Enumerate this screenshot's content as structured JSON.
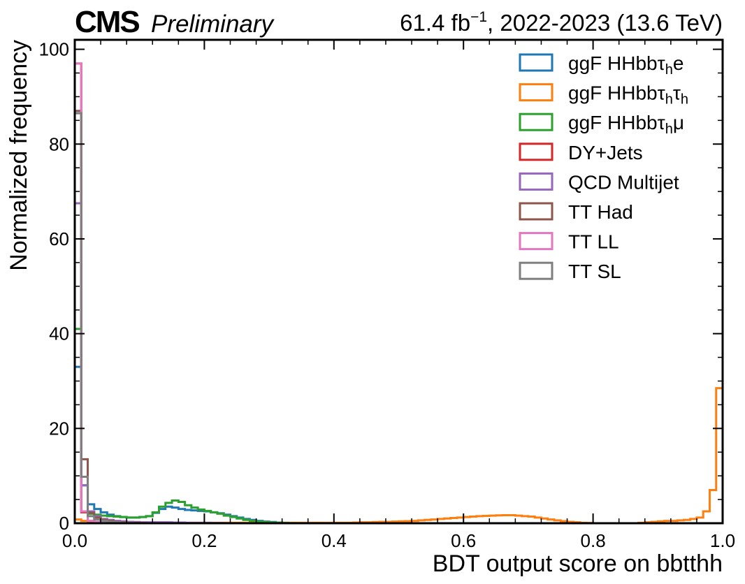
{
  "header": {
    "experiment": "CMS",
    "status": "Preliminary",
    "lumi_value": "61.4 fb",
    "lumi_exp": "−1",
    "lumi_rest": ", 2022-2023 (13.6 TeV)"
  },
  "chart_data": {
    "type": "histogram-step",
    "xlabel": "BDT output score on bbtthh",
    "ylabel": "Normalized frequency",
    "xlim": [
      0.0,
      1.0
    ],
    "ylim": [
      0,
      102
    ],
    "bin_width": 0.01,
    "xticks": [
      "0.0",
      "0.2",
      "0.4",
      "0.6",
      "0.8",
      "1.0"
    ],
    "yticks": [
      "0",
      "20",
      "40",
      "60",
      "80",
      "100"
    ],
    "legend_position": "top-right",
    "series": [
      {
        "name": "ggF HHbbτhe",
        "legend": {
          "base": "ggF HHbbτ",
          "sub1": "h",
          "tail": "e",
          "sub2": ""
        },
        "color": "#1f77b4",
        "bins": [
          [
            0.0,
            33
          ],
          [
            0.01,
            8
          ],
          [
            0.02,
            4
          ],
          [
            0.03,
            3
          ],
          [
            0.04,
            2.3
          ],
          [
            0.05,
            1.8
          ],
          [
            0.06,
            1.5
          ],
          [
            0.07,
            1.3
          ],
          [
            0.08,
            1.2
          ],
          [
            0.09,
            1.2
          ],
          [
            0.1,
            1.3
          ],
          [
            0.11,
            1.5
          ],
          [
            0.12,
            2.2
          ],
          [
            0.13,
            3
          ],
          [
            0.14,
            3.5
          ],
          [
            0.15,
            3.3
          ],
          [
            0.16,
            3
          ],
          [
            0.17,
            2.8
          ],
          [
            0.18,
            2.7
          ],
          [
            0.19,
            2.6
          ],
          [
            0.2,
            2.5
          ],
          [
            0.21,
            2.3
          ],
          [
            0.22,
            2.1
          ],
          [
            0.23,
            1.8
          ],
          [
            0.24,
            1.5
          ],
          [
            0.25,
            1.2
          ],
          [
            0.26,
            0.9
          ],
          [
            0.27,
            0.7
          ],
          [
            0.28,
            0.5
          ],
          [
            0.29,
            0.35
          ],
          [
            0.3,
            0.25
          ],
          [
            0.31,
            0.15
          ],
          [
            0.32,
            0.1
          ],
          [
            0.33,
            0.05
          ],
          [
            0.34,
            0.02
          ],
          [
            0.35,
            0.0
          ]
        ]
      },
      {
        "name": "ggF HHbbτhτh",
        "legend": {
          "base": "ggF HHbbτ",
          "sub1": "h",
          "tail": "τ",
          "sub2": "h"
        },
        "color": "#ff7f0e",
        "bins": [
          [
            0.0,
            0.8
          ],
          [
            0.01,
            0.5
          ],
          [
            0.02,
            0.3
          ],
          [
            0.03,
            0.2
          ],
          [
            0.04,
            0.2
          ],
          [
            0.05,
            0.1
          ],
          [
            0.06,
            0.1
          ],
          [
            0.07,
            0.1
          ],
          [
            0.08,
            0.1
          ],
          [
            0.09,
            0.1
          ],
          [
            0.1,
            0.1
          ],
          [
            0.11,
            0.1
          ],
          [
            0.12,
            0.1
          ],
          [
            0.13,
            0.1
          ],
          [
            0.14,
            0.1
          ],
          [
            0.15,
            0.1
          ],
          [
            0.16,
            0.1
          ],
          [
            0.17,
            0.1
          ],
          [
            0.18,
            0.1
          ],
          [
            0.19,
            0.1
          ],
          [
            0.2,
            0.1
          ],
          [
            0.21,
            0.1
          ],
          [
            0.22,
            0.1
          ],
          [
            0.23,
            0.1
          ],
          [
            0.24,
            0.1
          ],
          [
            0.25,
            0.1
          ],
          [
            0.26,
            0.1
          ],
          [
            0.27,
            0.1
          ],
          [
            0.28,
            0.1
          ],
          [
            0.29,
            0.1
          ],
          [
            0.3,
            0.1
          ],
          [
            0.31,
            0.1
          ],
          [
            0.32,
            0.1
          ],
          [
            0.33,
            0.1
          ],
          [
            0.34,
            0.1
          ],
          [
            0.35,
            0.1
          ],
          [
            0.36,
            0.1
          ],
          [
            0.37,
            0.1
          ],
          [
            0.38,
            0.1
          ],
          [
            0.39,
            0.1
          ],
          [
            0.4,
            0.1
          ],
          [
            0.41,
            0.1
          ],
          [
            0.42,
            0.1
          ],
          [
            0.43,
            0.15
          ],
          [
            0.44,
            0.2
          ],
          [
            0.45,
            0.2
          ],
          [
            0.46,
            0.25
          ],
          [
            0.47,
            0.3
          ],
          [
            0.48,
            0.3
          ],
          [
            0.49,
            0.35
          ],
          [
            0.5,
            0.4
          ],
          [
            0.51,
            0.45
          ],
          [
            0.52,
            0.5
          ],
          [
            0.53,
            0.6
          ],
          [
            0.54,
            0.7
          ],
          [
            0.55,
            0.8
          ],
          [
            0.56,
            0.9
          ],
          [
            0.57,
            1.0
          ],
          [
            0.58,
            1.1
          ],
          [
            0.59,
            1.2
          ],
          [
            0.6,
            1.3
          ],
          [
            0.61,
            1.4
          ],
          [
            0.62,
            1.5
          ],
          [
            0.63,
            1.55
          ],
          [
            0.64,
            1.6
          ],
          [
            0.65,
            1.65
          ],
          [
            0.66,
            1.7
          ],
          [
            0.67,
            1.7
          ],
          [
            0.68,
            1.6
          ],
          [
            0.69,
            1.5
          ],
          [
            0.7,
            1.4
          ],
          [
            0.71,
            1.2
          ],
          [
            0.72,
            1.0
          ],
          [
            0.73,
            0.8
          ],
          [
            0.74,
            0.6
          ],
          [
            0.75,
            0.45
          ],
          [
            0.76,
            0.3
          ],
          [
            0.77,
            0.2
          ],
          [
            0.78,
            0.1
          ],
          [
            0.79,
            0.05
          ],
          [
            0.8,
            0.0
          ],
          [
            0.81,
            0.0
          ],
          [
            0.82,
            0.0
          ],
          [
            0.83,
            0.0
          ],
          [
            0.84,
            0.0
          ],
          [
            0.85,
            0.0
          ],
          [
            0.86,
            0.0
          ],
          [
            0.87,
            0.1
          ],
          [
            0.88,
            0.2
          ],
          [
            0.89,
            0.3
          ],
          [
            0.9,
            0.4
          ],
          [
            0.91,
            0.5
          ],
          [
            0.92,
            0.5
          ],
          [
            0.93,
            0.6
          ],
          [
            0.94,
            0.7
          ],
          [
            0.95,
            0.9
          ],
          [
            0.96,
            1.2
          ],
          [
            0.97,
            2.5
          ],
          [
            0.98,
            7
          ],
          [
            0.99,
            28.5
          ]
        ]
      },
      {
        "name": "ggF HHbbτhμ",
        "legend": {
          "base": "ggF HHbbτ",
          "sub1": "h",
          "tail": "μ",
          "sub2": ""
        },
        "color": "#2ca02c",
        "bins": [
          [
            0.0,
            41
          ],
          [
            0.01,
            2.5
          ],
          [
            0.02,
            2
          ],
          [
            0.03,
            1.8
          ],
          [
            0.04,
            1.6
          ],
          [
            0.05,
            1.5
          ],
          [
            0.06,
            1.4
          ],
          [
            0.07,
            1.3
          ],
          [
            0.08,
            1.2
          ],
          [
            0.09,
            1.2
          ],
          [
            0.1,
            1.3
          ],
          [
            0.11,
            1.5
          ],
          [
            0.12,
            2.3
          ],
          [
            0.13,
            3.5
          ],
          [
            0.14,
            4.3
          ],
          [
            0.15,
            4.8
          ],
          [
            0.16,
            4.5
          ],
          [
            0.17,
            3.8
          ],
          [
            0.18,
            3.3
          ],
          [
            0.19,
            2.9
          ],
          [
            0.2,
            2.6
          ],
          [
            0.21,
            2.3
          ],
          [
            0.22,
            2.0
          ],
          [
            0.23,
            1.6
          ],
          [
            0.24,
            1.3
          ],
          [
            0.25,
            1.0
          ],
          [
            0.26,
            0.7
          ],
          [
            0.27,
            0.5
          ],
          [
            0.28,
            0.35
          ],
          [
            0.29,
            0.25
          ],
          [
            0.3,
            0.15
          ],
          [
            0.31,
            0.1
          ],
          [
            0.32,
            0.05
          ],
          [
            0.33,
            0.02
          ],
          [
            0.34,
            0.0
          ]
        ]
      },
      {
        "name": "DY+Jets",
        "legend": {
          "base": "DY+Jets",
          "sub1": "",
          "tail": "",
          "sub2": ""
        },
        "color": "#d62728",
        "bins": [
          [
            0.0,
            97
          ],
          [
            0.01,
            2.3
          ],
          [
            0.02,
            0.5
          ],
          [
            0.03,
            0.2
          ],
          [
            0.04,
            0.1
          ],
          [
            0.05,
            0.05
          ],
          [
            0.06,
            0.0
          ]
        ]
      },
      {
        "name": "QCD Multijet",
        "legend": {
          "base": "QCD Multijet",
          "sub1": "",
          "tail": "",
          "sub2": ""
        },
        "color": "#9467bd",
        "bins": [
          [
            0.0,
            67.5
          ],
          [
            0.01,
            8
          ],
          [
            0.02,
            2.5
          ],
          [
            0.03,
            1.5
          ],
          [
            0.04,
            0.9
          ],
          [
            0.05,
            0.7
          ],
          [
            0.06,
            0.5
          ],
          [
            0.07,
            0.4
          ],
          [
            0.08,
            0.3
          ],
          [
            0.09,
            0.25
          ],
          [
            0.1,
            0.2
          ],
          [
            0.11,
            0.2
          ],
          [
            0.12,
            0.2
          ],
          [
            0.13,
            0.2
          ],
          [
            0.14,
            0.2
          ],
          [
            0.15,
            0.15
          ],
          [
            0.16,
            0.15
          ],
          [
            0.17,
            0.1
          ],
          [
            0.18,
            0.1
          ],
          [
            0.19,
            0.1
          ],
          [
            0.2,
            0.1
          ],
          [
            0.21,
            0.05
          ],
          [
            0.22,
            0.05
          ],
          [
            0.23,
            0.0
          ]
        ]
      },
      {
        "name": "TT Had",
        "legend": {
          "base": "TT Had",
          "sub1": "",
          "tail": "",
          "sub2": ""
        },
        "color": "#8c564b",
        "bins": [
          [
            0.0,
            87
          ],
          [
            0.01,
            13.5
          ],
          [
            0.02,
            2.2
          ],
          [
            0.03,
            1.2
          ],
          [
            0.04,
            0.7
          ],
          [
            0.05,
            0.5
          ],
          [
            0.06,
            0.3
          ],
          [
            0.07,
            0.2
          ],
          [
            0.08,
            0.1
          ],
          [
            0.09,
            0.1
          ],
          [
            0.1,
            0.05
          ],
          [
            0.11,
            0.0
          ]
        ]
      },
      {
        "name": "TT LL",
        "legend": {
          "base": "TT LL",
          "sub1": "",
          "tail": "",
          "sub2": ""
        },
        "color": "#e377c2",
        "bins": [
          [
            0.0,
            97
          ],
          [
            0.01,
            2.5
          ],
          [
            0.02,
            0.5
          ],
          [
            0.03,
            0.3
          ],
          [
            0.04,
            0.2
          ],
          [
            0.05,
            0.1
          ],
          [
            0.06,
            0.05
          ],
          [
            0.07,
            0.0
          ]
        ]
      },
      {
        "name": "TT SL",
        "legend": {
          "base": "TT SL",
          "sub1": "",
          "tail": "",
          "sub2": ""
        },
        "color": "#7f7f7f",
        "bins": [
          [
            0.0,
            86.5
          ],
          [
            0.01,
            9.8
          ],
          [
            0.02,
            1.5
          ],
          [
            0.03,
            0.8
          ],
          [
            0.04,
            0.5
          ],
          [
            0.05,
            0.3
          ],
          [
            0.06,
            0.2
          ],
          [
            0.07,
            0.1
          ],
          [
            0.08,
            0.05
          ],
          [
            0.09,
            0.0
          ]
        ]
      }
    ]
  }
}
